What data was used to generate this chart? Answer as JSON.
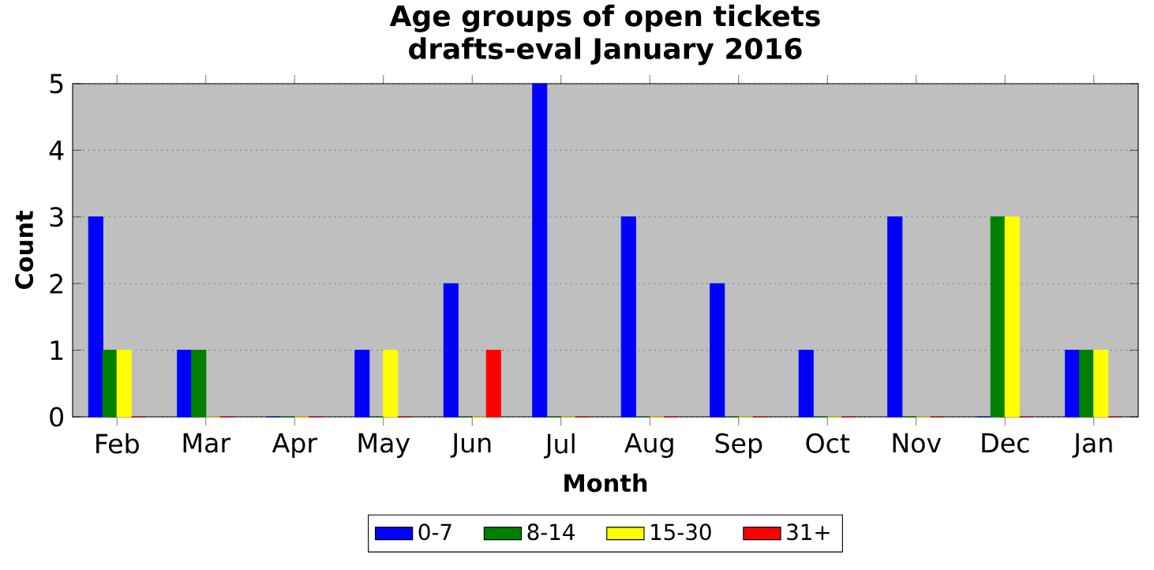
{
  "chart_data": {
    "type": "bar",
    "title": "Age groups of open tickets",
    "subtitle": "drafts-eval January 2016",
    "xlabel": "Month",
    "ylabel": "Count",
    "categories": [
      "Feb",
      "Mar",
      "Apr",
      "May",
      "Jun",
      "Jul",
      "Aug",
      "Sep",
      "Oct",
      "Nov",
      "Dec",
      "Jan"
    ],
    "series": [
      {
        "name": "0-7",
        "color": "#0000ff",
        "values": [
          3,
          1,
          0,
          1,
          2,
          5,
          3,
          2,
          1,
          3,
          0,
          1
        ]
      },
      {
        "name": "8-14",
        "color": "#008000",
        "values": [
          1,
          1,
          0,
          0,
          0,
          0,
          0,
          0,
          0,
          0,
          3,
          1
        ]
      },
      {
        "name": "15-30",
        "color": "#ffff00",
        "values": [
          1,
          0,
          0,
          1,
          0,
          0,
          0,
          0,
          0,
          0,
          3,
          1
        ]
      },
      {
        "name": "31+",
        "color": "#ff0000",
        "values": [
          0,
          0,
          0,
          0,
          1,
          0,
          0,
          0,
          0,
          0,
          0,
          0
        ]
      }
    ],
    "ylim": [
      0,
      5
    ],
    "yticks": [
      0,
      1,
      2,
      3,
      4,
      5
    ],
    "grid": "y",
    "legend": "bottom"
  }
}
